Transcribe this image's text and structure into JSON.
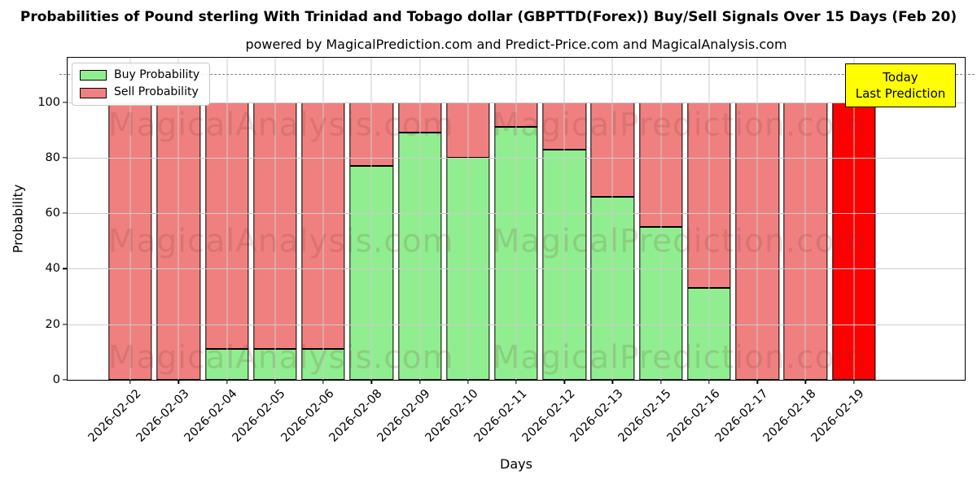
{
  "title": "Probabilities of Pound sterling With Trinidad and Tobago dollar (GBPTTD(Forex)) Buy/Sell Signals Over 15 Days (Feb 20)",
  "subtitle": "powered by MagicalPrediction.com and Predict-Price.com and MagicalAnalysis.com",
  "legend": {
    "items": [
      {
        "label": "Buy Probability",
        "color": "#90EE90"
      },
      {
        "label": "Sell Probability",
        "color": "#F08080"
      }
    ]
  },
  "annotation": {
    "lines": [
      "Today",
      "Last Prediction"
    ],
    "bg_color": "#FFFF00",
    "border_color": "#000000"
  },
  "watermarks": {
    "left_text": "MagicalAnalysis.com",
    "right_text": "MagicalPrediction.com"
  },
  "axes": {
    "xlabel": "Days",
    "ylabel": "Probability",
    "yticks": [
      0,
      20,
      40,
      60,
      80,
      100
    ],
    "ylim": [
      0,
      116
    ],
    "dashed_guideline_y": 110
  },
  "colors": {
    "buy": "#90EE90",
    "sell": "#F08080",
    "today_bar": "#FF0000",
    "bar_edge": "#000000",
    "grid": "#cccccc",
    "dashed_line": "#7f7f7f",
    "background": "#ffffff"
  },
  "chart_data": {
    "type": "bar",
    "stacked": true,
    "title": "Probabilities of Pound sterling With Trinidad and Tobago dollar (GBPTTD(Forex)) Buy/Sell Signals Over 15 Days (Feb 20)",
    "xlabel": "Days",
    "ylabel": "Probability",
    "ylim": [
      0,
      116
    ],
    "grid": true,
    "legend_position": "upper left",
    "dashed_guideline_y": 110,
    "categories": [
      "2026-02-02",
      "2026-02-03",
      "2026-02-04",
      "2026-02-05",
      "2026-02-06",
      "2026-02-08",
      "2026-02-09",
      "2026-02-10",
      "2026-02-11",
      "2026-02-12",
      "2026-02-13",
      "2026-02-15",
      "2026-02-16",
      "2026-02-17",
      "2026-02-18",
      "2026-02-19"
    ],
    "series": [
      {
        "name": "Buy Probability",
        "color": "#90EE90",
        "values": [
          0,
          0,
          11,
          11,
          11,
          77,
          89,
          80,
          91,
          83,
          66,
          55,
          33,
          0,
          0,
          0
        ]
      },
      {
        "name": "Sell Probability",
        "color": "#F08080",
        "values": [
          100,
          100,
          89,
          89,
          89,
          23,
          11,
          20,
          9,
          17,
          34,
          45,
          67,
          100,
          100,
          100
        ]
      }
    ],
    "highlight_bar": {
      "category": "2026-02-19",
      "color": "#FF0000",
      "note": "Today Last Prediction"
    }
  }
}
